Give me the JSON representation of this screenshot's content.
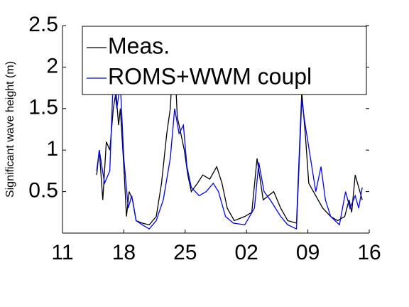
{
  "chart_data": {
    "type": "line",
    "ylabel": "Significant wave height (m)",
    "xlim": [
      0,
      35
    ],
    "xticks": [
      {
        "value": 0,
        "label": "11"
      },
      {
        "value": 7,
        "label": "18"
      },
      {
        "value": 14,
        "label": "25"
      },
      {
        "value": 21,
        "label": "02"
      },
      {
        "value": 28,
        "label": "09"
      },
      {
        "value": 35,
        "label": "16"
      }
    ],
    "ylim": [
      0,
      2.5
    ],
    "yticks": [
      0.5,
      1,
      1.5,
      2,
      2.5
    ],
    "legend": "upper right",
    "series": [
      {
        "name": "Meas.",
        "color": "#000000",
        "x": [
          3.9,
          4.2,
          4.6,
          5.0,
          5.4,
          5.8,
          6.1,
          6.4,
          6.6,
          7.0,
          7.3,
          7.6,
          8.0,
          8.4,
          9.1,
          9.9,
          10.7,
          11.3,
          11.9,
          12.3,
          12.7,
          13.1,
          13.5,
          13.9,
          14.3,
          14.7,
          15.4,
          16.0,
          16.8,
          17.6,
          18.2,
          18.8,
          19.6,
          20.8,
          21.6,
          22.2,
          22.9,
          24.1,
          24.9,
          25.7,
          26.7,
          27.3,
          27.7,
          28.1,
          28.9,
          29.7,
          30.6,
          31.4,
          32.2,
          32.7,
          33.0,
          33.4,
          33.8,
          34.2
        ],
        "values": [
          0.7,
          1.0,
          0.4,
          1.1,
          1.0,
          1.5,
          1.7,
          1.3,
          1.5,
          0.8,
          0.2,
          0.5,
          0.4,
          0.15,
          0.12,
          0.1,
          0.2,
          0.6,
          1.2,
          1.5,
          2.3,
          1.4,
          1.2,
          1.0,
          0.7,
          0.5,
          0.6,
          0.7,
          0.65,
          0.8,
          0.6,
          0.3,
          0.15,
          0.2,
          0.25,
          0.9,
          0.4,
          0.5,
          0.3,
          0.15,
          0.12,
          1.7,
          1.2,
          0.6,
          0.45,
          0.3,
          0.2,
          0.15,
          0.2,
          0.4,
          0.25,
          0.7,
          0.55,
          0.4
        ]
      },
      {
        "name": "ROMS+WWM coupl",
        "color": "#0000ff",
        "x": [
          3.9,
          4.2,
          4.8,
          5.4,
          5.8,
          6.2,
          6.6,
          7.0,
          7.5,
          7.9,
          8.4,
          9.1,
          9.9,
          10.7,
          11.5,
          12.3,
          12.8,
          13.3,
          13.8,
          14.2,
          14.7,
          15.6,
          16.4,
          17.2,
          17.8,
          18.6,
          19.5,
          20.8,
          21.9,
          22.4,
          23.0,
          23.7,
          24.9,
          25.7,
          26.7,
          27.3,
          27.7,
          28.3,
          28.9,
          29.5,
          30.0,
          30.6,
          31.6,
          32.3,
          32.8,
          33.4,
          33.8,
          34.2
        ],
        "values": [
          0.75,
          1.0,
          0.6,
          0.75,
          1.9,
          1.5,
          1.8,
          0.9,
          0.3,
          0.45,
          0.15,
          0.1,
          0.05,
          0.15,
          0.4,
          0.9,
          1.5,
          1.2,
          1.3,
          0.8,
          0.55,
          0.45,
          0.5,
          0.6,
          0.5,
          0.2,
          0.12,
          0.1,
          0.3,
          0.85,
          0.5,
          0.4,
          0.2,
          0.1,
          0.05,
          1.6,
          1.3,
          0.9,
          0.5,
          0.8,
          0.4,
          0.2,
          0.1,
          0.5,
          0.3,
          0.45,
          0.3,
          0.55
        ]
      }
    ]
  }
}
